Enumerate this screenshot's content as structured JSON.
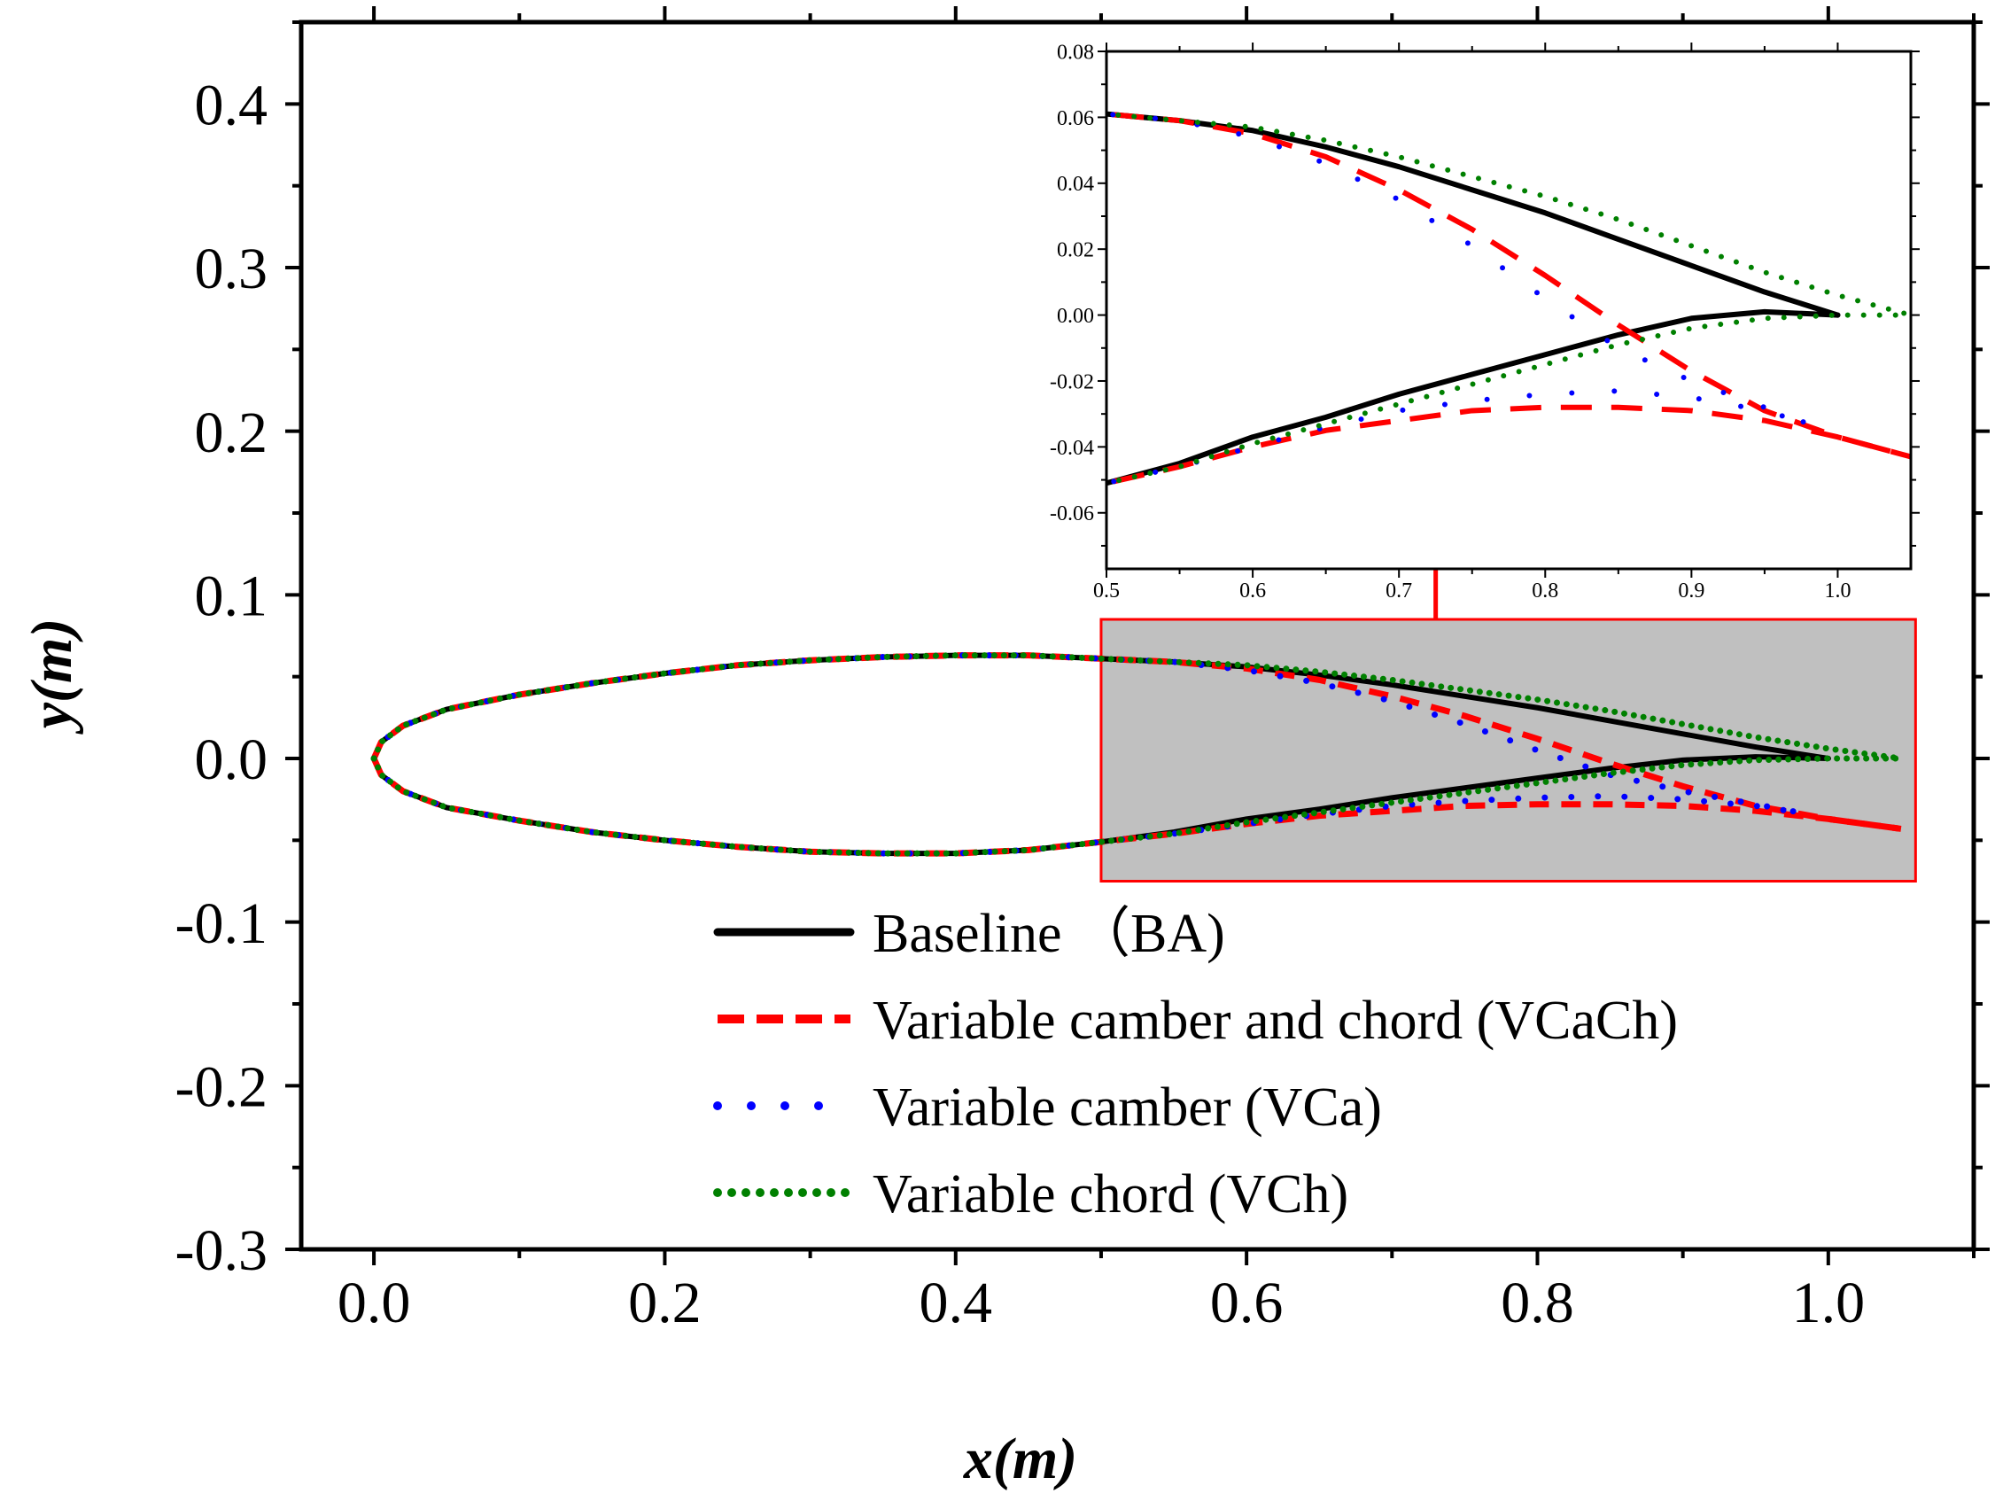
{
  "chart_data": [
    {
      "id": "main",
      "type": "line",
      "title": "",
      "xlabel": "x(m)",
      "ylabel": "y(m)",
      "xlim": [
        -0.05,
        1.1
      ],
      "ylim": [
        -0.3,
        0.45
      ],
      "xticks": [
        0.0,
        0.2,
        0.4,
        0.6,
        0.8,
        1.0
      ],
      "xtick_labels": [
        "0.0",
        "0.2",
        "0.4",
        "0.6",
        "0.8",
        "1.0"
      ],
      "yticks": [
        -0.3,
        -0.2,
        -0.1,
        0.0,
        0.1,
        0.2,
        0.3,
        0.4
      ],
      "ytick_labels": [
        "-0.3",
        "-0.2",
        "-0.1",
        "0.0",
        "0.1",
        "0.2",
        "0.3",
        "0.4"
      ],
      "legend_position": "bottom-center",
      "zoom_region": {
        "x": [
          0.5,
          1.06
        ],
        "y": [
          -0.075,
          0.085
        ]
      },
      "series": [
        {
          "name": "Baseline （BA)",
          "color": "#000000",
          "style": "solid",
          "upper": [
            [
              0,
              0
            ],
            [
              0.005,
              0.01
            ],
            [
              0.02,
              0.02
            ],
            [
              0.05,
              0.03
            ],
            [
              0.1,
              0.039
            ],
            [
              0.15,
              0.046
            ],
            [
              0.2,
              0.052
            ],
            [
              0.25,
              0.057
            ],
            [
              0.3,
              0.06
            ],
            [
              0.35,
              0.062
            ],
            [
              0.4,
              0.063
            ],
            [
              0.45,
              0.063
            ],
            [
              0.5,
              0.061
            ],
            [
              0.55,
              0.059
            ],
            [
              0.6,
              0.056
            ],
            [
              0.65,
              0.051
            ],
            [
              0.7,
              0.045
            ],
            [
              0.75,
              0.038
            ],
            [
              0.8,
              0.031
            ],
            [
              0.85,
              0.023
            ],
            [
              0.9,
              0.015
            ],
            [
              0.95,
              0.007
            ],
            [
              1.0,
              0.0
            ]
          ],
          "lower": [
            [
              0,
              0
            ],
            [
              0.005,
              -0.01
            ],
            [
              0.02,
              -0.02
            ],
            [
              0.05,
              -0.03
            ],
            [
              0.1,
              -0.038
            ],
            [
              0.15,
              -0.045
            ],
            [
              0.2,
              -0.05
            ],
            [
              0.25,
              -0.054
            ],
            [
              0.3,
              -0.057
            ],
            [
              0.35,
              -0.058
            ],
            [
              0.4,
              -0.058
            ],
            [
              0.45,
              -0.056
            ],
            [
              0.5,
              -0.051
            ],
            [
              0.55,
              -0.045
            ],
            [
              0.6,
              -0.037
            ],
            [
              0.65,
              -0.031
            ],
            [
              0.7,
              -0.024
            ],
            [
              0.75,
              -0.018
            ],
            [
              0.8,
              -0.012
            ],
            [
              0.85,
              -0.006
            ],
            [
              0.9,
              -0.001
            ],
            [
              0.95,
              0.001
            ],
            [
              1.0,
              0.0
            ]
          ]
        },
        {
          "name": "Variable camber and chord (VCaCh)",
          "color": "#ff0000",
          "style": "dashed",
          "upper": [
            [
              0,
              0
            ],
            [
              0.005,
              0.01
            ],
            [
              0.02,
              0.02
            ],
            [
              0.05,
              0.03
            ],
            [
              0.1,
              0.039
            ],
            [
              0.15,
              0.046
            ],
            [
              0.2,
              0.052
            ],
            [
              0.25,
              0.057
            ],
            [
              0.3,
              0.06
            ],
            [
              0.35,
              0.062
            ],
            [
              0.4,
              0.063
            ],
            [
              0.45,
              0.063
            ],
            [
              0.5,
              0.061
            ],
            [
              0.55,
              0.059
            ],
            [
              0.6,
              0.055
            ],
            [
              0.65,
              0.048
            ],
            [
              0.7,
              0.038
            ],
            [
              0.75,
              0.026
            ],
            [
              0.8,
              0.012
            ],
            [
              0.85,
              -0.003
            ],
            [
              0.9,
              -0.017
            ],
            [
              0.95,
              -0.029
            ],
            [
              1.0,
              -0.037
            ],
            [
              1.05,
              -0.043
            ]
          ],
          "lower": [
            [
              0,
              0
            ],
            [
              0.005,
              -0.01
            ],
            [
              0.02,
              -0.02
            ],
            [
              0.05,
              -0.03
            ],
            [
              0.1,
              -0.038
            ],
            [
              0.15,
              -0.045
            ],
            [
              0.2,
              -0.05
            ],
            [
              0.25,
              -0.054
            ],
            [
              0.3,
              -0.057
            ],
            [
              0.35,
              -0.058
            ],
            [
              0.4,
              -0.058
            ],
            [
              0.45,
              -0.056
            ],
            [
              0.5,
              -0.051
            ],
            [
              0.55,
              -0.046
            ],
            [
              0.6,
              -0.04
            ],
            [
              0.65,
              -0.035
            ],
            [
              0.7,
              -0.032
            ],
            [
              0.75,
              -0.029
            ],
            [
              0.8,
              -0.028
            ],
            [
              0.85,
              -0.028
            ],
            [
              0.9,
              -0.029
            ],
            [
              0.95,
              -0.032
            ],
            [
              1.0,
              -0.037
            ],
            [
              1.05,
              -0.043
            ]
          ]
        },
        {
          "name": "Variable camber (VCa)",
          "color": "#0000ff",
          "style": "dash-dot",
          "upper": [
            [
              0,
              0
            ],
            [
              0.005,
              0.01
            ],
            [
              0.02,
              0.02
            ],
            [
              0.05,
              0.03
            ],
            [
              0.1,
              0.039
            ],
            [
              0.15,
              0.046
            ],
            [
              0.2,
              0.052
            ],
            [
              0.25,
              0.057
            ],
            [
              0.3,
              0.06
            ],
            [
              0.35,
              0.062
            ],
            [
              0.4,
              0.063
            ],
            [
              0.45,
              0.063
            ],
            [
              0.5,
              0.061
            ],
            [
              0.55,
              0.059
            ],
            [
              0.6,
              0.054
            ],
            [
              0.65,
              0.046
            ],
            [
              0.7,
              0.035
            ],
            [
              0.75,
              0.021
            ],
            [
              0.8,
              0.005
            ],
            [
              0.85,
              -0.01
            ],
            [
              0.9,
              -0.02
            ],
            [
              0.95,
              -0.028
            ],
            [
              0.98,
              -0.033
            ]
          ],
          "lower": [
            [
              0,
              0
            ],
            [
              0.005,
              -0.01
            ],
            [
              0.02,
              -0.02
            ],
            [
              0.05,
              -0.03
            ],
            [
              0.1,
              -0.038
            ],
            [
              0.15,
              -0.045
            ],
            [
              0.2,
              -0.05
            ],
            [
              0.25,
              -0.054
            ],
            [
              0.3,
              -0.057
            ],
            [
              0.35,
              -0.058
            ],
            [
              0.4,
              -0.058
            ],
            [
              0.45,
              -0.056
            ],
            [
              0.5,
              -0.051
            ],
            [
              0.55,
              -0.046
            ],
            [
              0.6,
              -0.04
            ],
            [
              0.65,
              -0.034
            ],
            [
              0.7,
              -0.029
            ],
            [
              0.75,
              -0.026
            ],
            [
              0.8,
              -0.024
            ],
            [
              0.85,
              -0.023
            ],
            [
              0.9,
              -0.025
            ],
            [
              0.95,
              -0.029
            ],
            [
              0.98,
              -0.033
            ]
          ]
        },
        {
          "name": "Variable chord (VCh)",
          "color": "#008000",
          "style": "dotted",
          "upper": [
            [
              0,
              0
            ],
            [
              0.005,
              0.01
            ],
            [
              0.02,
              0.02
            ],
            [
              0.05,
              0.03
            ],
            [
              0.1,
              0.039
            ],
            [
              0.15,
              0.046
            ],
            [
              0.2,
              0.052
            ],
            [
              0.25,
              0.057
            ],
            [
              0.3,
              0.06
            ],
            [
              0.35,
              0.062
            ],
            [
              0.4,
              0.063
            ],
            [
              0.45,
              0.063
            ],
            [
              0.5,
              0.061
            ],
            [
              0.55,
              0.059
            ],
            [
              0.6,
              0.057
            ],
            [
              0.65,
              0.053
            ],
            [
              0.7,
              0.048
            ],
            [
              0.75,
              0.042
            ],
            [
              0.8,
              0.036
            ],
            [
              0.85,
              0.029
            ],
            [
              0.9,
              0.021
            ],
            [
              0.95,
              0.013
            ],
            [
              1.0,
              0.006
            ],
            [
              1.05,
              0.0
            ]
          ],
          "lower": [
            [
              0,
              0
            ],
            [
              0.005,
              -0.01
            ],
            [
              0.02,
              -0.02
            ],
            [
              0.05,
              -0.03
            ],
            [
              0.1,
              -0.038
            ],
            [
              0.15,
              -0.045
            ],
            [
              0.2,
              -0.05
            ],
            [
              0.25,
              -0.054
            ],
            [
              0.3,
              -0.057
            ],
            [
              0.35,
              -0.058
            ],
            [
              0.4,
              -0.058
            ],
            [
              0.45,
              -0.056
            ],
            [
              0.5,
              -0.051
            ],
            [
              0.55,
              -0.046
            ],
            [
              0.6,
              -0.039
            ],
            [
              0.65,
              -0.033
            ],
            [
              0.7,
              -0.027
            ],
            [
              0.75,
              -0.021
            ],
            [
              0.8,
              -0.015
            ],
            [
              0.85,
              -0.009
            ],
            [
              0.9,
              -0.004
            ],
            [
              0.95,
              -0.001
            ],
            [
              1.0,
              0.0
            ],
            [
              1.05,
              0.0
            ]
          ]
        }
      ]
    },
    {
      "id": "inset",
      "type": "line",
      "title": "",
      "xlabel": "",
      "ylabel": "",
      "xlim": [
        0.5,
        1.05
      ],
      "ylim": [
        -0.077,
        0.08
      ],
      "xticks": [
        0.5,
        0.6,
        0.7,
        0.8,
        0.9,
        1.0
      ],
      "xtick_labels": [
        "0.5",
        "0.6",
        "0.7",
        "0.8",
        "0.9",
        "1.0"
      ],
      "yticks": [
        -0.06,
        -0.04,
        -0.02,
        0.0,
        0.02,
        0.04,
        0.06,
        0.08
      ],
      "ytick_labels": [
        "-0.06",
        "-0.04",
        "-0.02",
        "0.00",
        "0.02",
        "0.04",
        "0.06",
        "0.08"
      ],
      "series_source": "main"
    }
  ]
}
